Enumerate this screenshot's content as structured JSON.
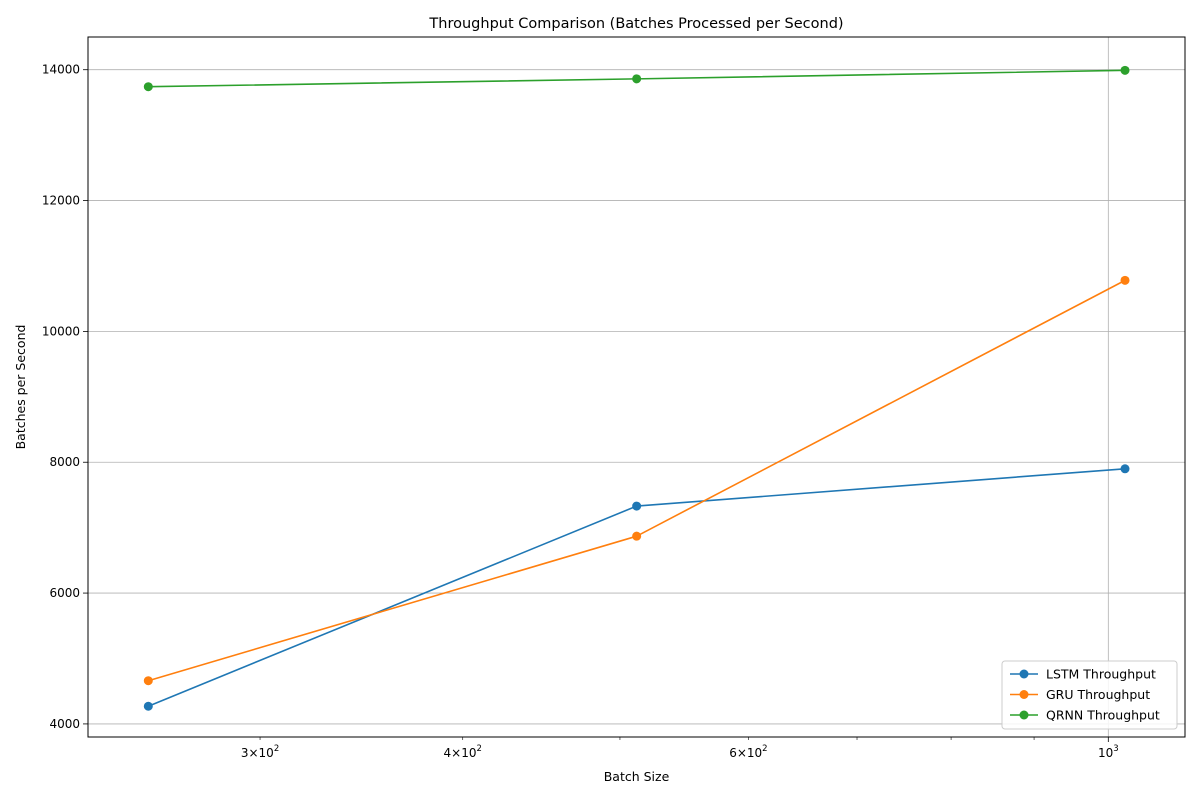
{
  "chart_data": {
    "type": "line",
    "title": "Throughput Comparison (Batches Processed per Second)",
    "xlabel": "Batch Size",
    "ylabel": "Batches per Second",
    "x_scale": "log",
    "x": [
      256,
      512,
      1024
    ],
    "xlim": [
      235,
      1115
    ],
    "ylim": [
      3800,
      14500
    ],
    "y_ticks": [
      4000,
      6000,
      8000,
      10000,
      12000,
      14000
    ],
    "x_major_ticks": [
      {
        "value": 1000,
        "base": "10",
        "exp": "3"
      }
    ],
    "x_minor_ticks": [
      {
        "value": 300,
        "mant": "3",
        "base": "10",
        "exp": "2"
      },
      {
        "value": 400,
        "mant": "4",
        "base": "10",
        "exp": "2"
      },
      {
        "value": 600,
        "mant": "6",
        "base": "10",
        "exp": "2"
      }
    ],
    "x_minor_unlabeled": [
      500,
      700,
      800,
      900
    ],
    "grid": true,
    "legend_position": "lower-right",
    "series": [
      {
        "name": "LSTM Throughput",
        "color": "#1f77b4",
        "values": [
          4270,
          7330,
          7900
        ]
      },
      {
        "name": "GRU Throughput",
        "color": "#ff7f0e",
        "values": [
          4660,
          6870,
          10780
        ]
      },
      {
        "name": "QRNN Throughput",
        "color": "#2ca02c",
        "values": [
          13740,
          13860,
          13990
        ]
      }
    ]
  }
}
